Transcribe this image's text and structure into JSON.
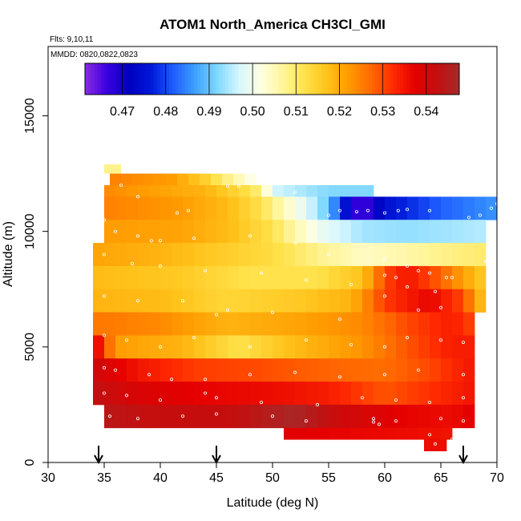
{
  "chart_data": {
    "type": "heatmap",
    "title": "ATOM1 North_America CH3Cl_GMI",
    "flights_note": "Flts: 9,10,11",
    "dates_note": "MMDD: 0820,0822,0823",
    "xlabel": "Latitude (deg N)",
    "ylabel": "Altitude (m)",
    "xlim": [
      30,
      70
    ],
    "ylim": [
      0,
      18000
    ],
    "x_ticks": [
      "30",
      "35",
      "40",
      "45",
      "50",
      "55",
      "60",
      "65",
      "70"
    ],
    "y_ticks": [
      "0",
      "5000",
      "10000",
      "15000"
    ],
    "colorbar": {
      "min": 0.4614,
      "max": 0.5476,
      "tick_values": [
        0.47,
        0.48,
        0.49,
        0.5,
        0.51,
        0.52,
        0.53,
        0.54
      ],
      "tick_labels": [
        "0.47",
        "0.48",
        "0.49",
        "0.50",
        "0.51",
        "0.52",
        "0.53",
        "0.54"
      ],
      "colors": [
        "#8a2be2",
        "#3b00e0",
        "#0000c0",
        "#0018d8",
        "#1e5cff",
        "#3da0ff",
        "#7fd8ff",
        "#d6f6ff",
        "#ffffe0",
        "#fff59a",
        "#ffe24a",
        "#ffc21a",
        "#ff9a00",
        "#ff6a00",
        "#ff2a00",
        "#e40000",
        "#c30f0f",
        "#a52a2a"
      ]
    },
    "marker_latitudes": [
      34.5,
      45.0,
      67.0
    ],
    "grid": false,
    "profile_bands": [
      {
        "alt": [
          12000,
          12500
        ],
        "lat": [
          35.5,
          48.5
        ],
        "value": 0.522,
        "gradient": [
          [
            35.5,
            0.525
          ],
          [
            41,
            0.522
          ],
          [
            44,
            0.515
          ],
          [
            47,
            0.505
          ],
          [
            48.5,
            0.5
          ]
        ]
      },
      {
        "alt": [
          11500,
          12000
        ],
        "lat": [
          35,
          59
        ],
        "value": 0.52,
        "gradient": [
          [
            35,
            0.524
          ],
          [
            44,
            0.519
          ],
          [
            48,
            0.512
          ],
          [
            49,
            0.508
          ],
          [
            50,
            0.497
          ],
          [
            52,
            0.495
          ],
          [
            55,
            0.492
          ],
          [
            59,
            0.492
          ]
        ]
      },
      {
        "alt": [
          10500,
          11500
        ],
        "lat": [
          35,
          70
        ],
        "value": 0.52,
        "gradient": [
          [
            35,
            0.525
          ],
          [
            42,
            0.522
          ],
          [
            46,
            0.518
          ],
          [
            49,
            0.512
          ],
          [
            51,
            0.505
          ],
          [
            53,
            0.498
          ],
          [
            55,
            0.49
          ],
          [
            57,
            0.47
          ],
          [
            58,
            0.465
          ],
          [
            60,
            0.475
          ],
          [
            65,
            0.482
          ],
          [
            70,
            0.486
          ]
        ]
      },
      {
        "alt": [
          9500,
          10500
        ],
        "lat": [
          35,
          69
        ],
        "value": 0.52,
        "gradient": [
          [
            35,
            0.522
          ],
          [
            42,
            0.521
          ],
          [
            46,
            0.518
          ],
          [
            50,
            0.512
          ],
          [
            54,
            0.5
          ],
          [
            58,
            0.494
          ],
          [
            62,
            0.493
          ],
          [
            66,
            0.494
          ],
          [
            69,
            0.495
          ]
        ]
      },
      {
        "alt": [
          8500,
          9500
        ],
        "lat": [
          34,
          69
        ],
        "value": 0.52,
        "gradient": [
          [
            34,
            0.521
          ],
          [
            40,
            0.519
          ],
          [
            45,
            0.516
          ],
          [
            50,
            0.513
          ],
          [
            54,
            0.508
          ],
          [
            58,
            0.504
          ],
          [
            62,
            0.506
          ],
          [
            65,
            0.508
          ],
          [
            69,
            0.51
          ]
        ]
      },
      {
        "alt": [
          7500,
          8500
        ],
        "lat": [
          34,
          69
        ],
        "value": 0.52,
        "gradient": [
          [
            34,
            0.518
          ],
          [
            42,
            0.516
          ],
          [
            48,
            0.512
          ],
          [
            54,
            0.512
          ],
          [
            58,
            0.517
          ],
          [
            60,
            0.53
          ],
          [
            62,
            0.535
          ],
          [
            65,
            0.528
          ],
          [
            69,
            0.515
          ]
        ]
      },
      {
        "alt": [
          6500,
          7500
        ],
        "lat": [
          34,
          69
        ],
        "value": 0.518,
        "gradient": [
          [
            34,
            0.519
          ],
          [
            40,
            0.518
          ],
          [
            46,
            0.514
          ],
          [
            52,
            0.516
          ],
          [
            57,
            0.519
          ],
          [
            60,
            0.531
          ],
          [
            64,
            0.537
          ],
          [
            67,
            0.53
          ],
          [
            69,
            0.515
          ]
        ]
      },
      {
        "alt": [
          5500,
          6500
        ],
        "lat": [
          34,
          68
        ],
        "value": 0.522,
        "gradient": [
          [
            34,
            0.526
          ],
          [
            40,
            0.524
          ],
          [
            46,
            0.519
          ],
          [
            52,
            0.521
          ],
          [
            58,
            0.524
          ],
          [
            62,
            0.53
          ],
          [
            66,
            0.534
          ],
          [
            68,
            0.53
          ]
        ]
      },
      {
        "alt": [
          4500,
          5500
        ],
        "lat": [
          34,
          68
        ],
        "value": 0.52,
        "gradient": [
          [
            34,
            0.54
          ],
          [
            36,
            0.522
          ],
          [
            42,
            0.519
          ],
          [
            47,
            0.512
          ],
          [
            52,
            0.518
          ],
          [
            58,
            0.523
          ],
          [
            62,
            0.529
          ],
          [
            66,
            0.534
          ],
          [
            68,
            0.534
          ]
        ]
      },
      {
        "alt": [
          3500,
          4500
        ],
        "lat": [
          34,
          68
        ],
        "value": 0.53,
        "gradient": [
          [
            34,
            0.541
          ],
          [
            38,
            0.535
          ],
          [
            43,
            0.531
          ],
          [
            48,
            0.53
          ],
          [
            54,
            0.528
          ],
          [
            60,
            0.527
          ],
          [
            64,
            0.53
          ],
          [
            68,
            0.535
          ]
        ]
      },
      {
        "alt": [
          2500,
          3500
        ],
        "lat": [
          34,
          68
        ],
        "value": 0.535,
        "gradient": [
          [
            34,
            0.543
          ],
          [
            38,
            0.539
          ],
          [
            44,
            0.537
          ],
          [
            50,
            0.536
          ],
          [
            55,
            0.534
          ],
          [
            60,
            0.529
          ],
          [
            64,
            0.532
          ],
          [
            68,
            0.535
          ]
        ]
      },
      {
        "alt": [
          1500,
          2500
        ],
        "lat": [
          35,
          68
        ],
        "value": 0.54,
        "gradient": [
          [
            35,
            0.544
          ],
          [
            40,
            0.542
          ],
          [
            46,
            0.542
          ],
          [
            52,
            0.547
          ],
          [
            56,
            0.541
          ],
          [
            62,
            0.537
          ],
          [
            66,
            0.536
          ],
          [
            68,
            0.538
          ]
        ]
      },
      {
        "alt": [
          1000,
          1500
        ],
        "lat": [
          51,
          66
        ],
        "value": 0.537,
        "gradient": [
          [
            51,
            0.538
          ],
          [
            56,
            0.537
          ],
          [
            62,
            0.536
          ],
          [
            66,
            0.535
          ]
        ]
      },
      {
        "alt": [
          500,
          1000
        ],
        "lat": [
          63.5,
          65.5
        ],
        "value": 0.536,
        "gradient": [
          [
            63.5,
            0.536
          ],
          [
            65.5,
            0.536
          ]
        ]
      }
    ],
    "upper_light_patch": {
      "alt": [
        12500,
        12900
      ],
      "lat": [
        35,
        36.5
      ],
      "value": 0.508
    },
    "data_points": [
      [
        35,
        12200
      ],
      [
        36.5,
        12000
      ],
      [
        38,
        11500
      ],
      [
        41.5,
        10800
      ],
      [
        42.5,
        10900
      ],
      [
        46,
        11950
      ],
      [
        47,
        11950
      ],
      [
        52,
        11700
      ],
      [
        55,
        10700
      ],
      [
        56,
        10900
      ],
      [
        57.5,
        10850
      ],
      [
        58.5,
        10900
      ],
      [
        60,
        10800
      ],
      [
        61.2,
        10900
      ],
      [
        62,
        10950
      ],
      [
        64,
        10900
      ],
      [
        67.5,
        10600
      ],
      [
        68.5,
        10700
      ],
      [
        69.5,
        11000
      ],
      [
        70,
        11200
      ],
      [
        35,
        10500
      ],
      [
        36,
        10000
      ],
      [
        38,
        9800
      ],
      [
        39.2,
        9600
      ],
      [
        40,
        9600
      ],
      [
        43,
        9700
      ],
      [
        48,
        9800
      ],
      [
        52,
        9500
      ],
      [
        55,
        9000
      ],
      [
        60,
        8800
      ],
      [
        62,
        8500
      ],
      [
        63,
        8300
      ],
      [
        64,
        8200
      ],
      [
        65.5,
        8000
      ],
      [
        66,
        8000
      ],
      [
        69,
        8700
      ],
      [
        35,
        9000
      ],
      [
        37.5,
        8600
      ],
      [
        40,
        8500
      ],
      [
        44,
        8300
      ],
      [
        49,
        8200
      ],
      [
        53,
        7900
      ],
      [
        57,
        7700
      ],
      [
        60,
        8100
      ],
      [
        61,
        8000
      ],
      [
        62,
        7600
      ],
      [
        64.5,
        7400
      ],
      [
        35,
        7200
      ],
      [
        38,
        7000
      ],
      [
        42,
        7000
      ],
      [
        45,
        6400
      ],
      [
        46,
        6600
      ],
      [
        50,
        6500
      ],
      [
        56,
        6200
      ],
      [
        60,
        7200
      ],
      [
        63,
        6600
      ],
      [
        65,
        6700
      ],
      [
        35,
        5500
      ],
      [
        37,
        5300
      ],
      [
        40,
        5000
      ],
      [
        43,
        5400
      ],
      [
        48,
        5000
      ],
      [
        53,
        5300
      ],
      [
        57,
        5100
      ],
      [
        60,
        5000
      ],
      [
        62,
        5400
      ],
      [
        65,
        5300
      ],
      [
        67,
        5200
      ],
      [
        35,
        4100
      ],
      [
        36,
        4000
      ],
      [
        39,
        3800
      ],
      [
        41,
        3600
      ],
      [
        44,
        3600
      ],
      [
        48,
        3800
      ],
      [
        52,
        3900
      ],
      [
        56,
        3700
      ],
      [
        60,
        3800
      ],
      [
        63,
        4000
      ],
      [
        67,
        3800
      ],
      [
        35,
        3000
      ],
      [
        37,
        2900
      ],
      [
        40,
        2700
      ],
      [
        44,
        3000
      ],
      [
        45,
        2800
      ],
      [
        49,
        2600
      ],
      [
        54,
        2500
      ],
      [
        58,
        2800
      ],
      [
        61,
        2700
      ],
      [
        64,
        2600
      ],
      [
        67,
        2800
      ],
      [
        35.5,
        2000
      ],
      [
        38,
        1900
      ],
      [
        42,
        2000
      ],
      [
        45,
        2100
      ],
      [
        50,
        2000
      ],
      [
        53,
        1800
      ],
      [
        59,
        1900
      ],
      [
        61,
        1800
      ],
      [
        65,
        1900
      ],
      [
        67,
        1800
      ],
      [
        59,
        1750
      ],
      [
        59.5,
        1650
      ],
      [
        64,
        1200
      ],
      [
        66,
        1000
      ],
      [
        64.5,
        800
      ]
    ]
  }
}
